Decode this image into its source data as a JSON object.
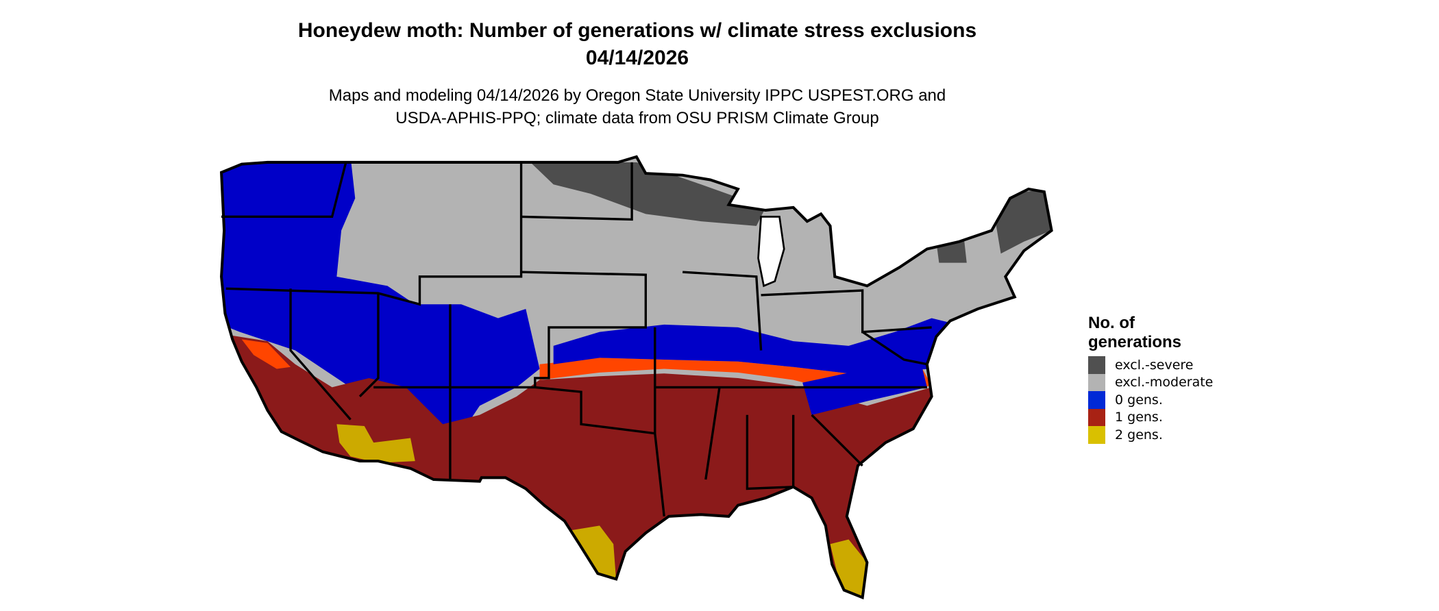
{
  "title": {
    "line1": "Honeydew moth: Number of generations w/ climate stress exclusions",
    "line2": "04/14/2026"
  },
  "subtitle": {
    "line1": "Maps and modeling 04/14/2026 by Oregon State University IPPC USPEST.ORG and",
    "line2": "USDA-APHIS-PPQ; climate data from OSU PRISM Climate Group"
  },
  "legend": {
    "title_line1": "No. of",
    "title_line2": "generations",
    "items": [
      {
        "label": "excl.-severe",
        "color": "#505050"
      },
      {
        "label": "excl.-moderate",
        "color": "#b3b3b3"
      },
      {
        "label": "0 gens.",
        "color": "#0029d6"
      },
      {
        "label": "1 gens.",
        "color": "#a82214"
      },
      {
        "label": "2 gens.",
        "color": "#d9c000"
      }
    ]
  },
  "map": {
    "region": "Contiguous United States",
    "colors": {
      "severe": "#4d4d4d",
      "moderate": "#b3b3b3",
      "zero": "#0000c8",
      "one": "#8b1a1a",
      "one_edge": "#ff4500",
      "two": "#ccaa00",
      "border": "#000000"
    }
  }
}
